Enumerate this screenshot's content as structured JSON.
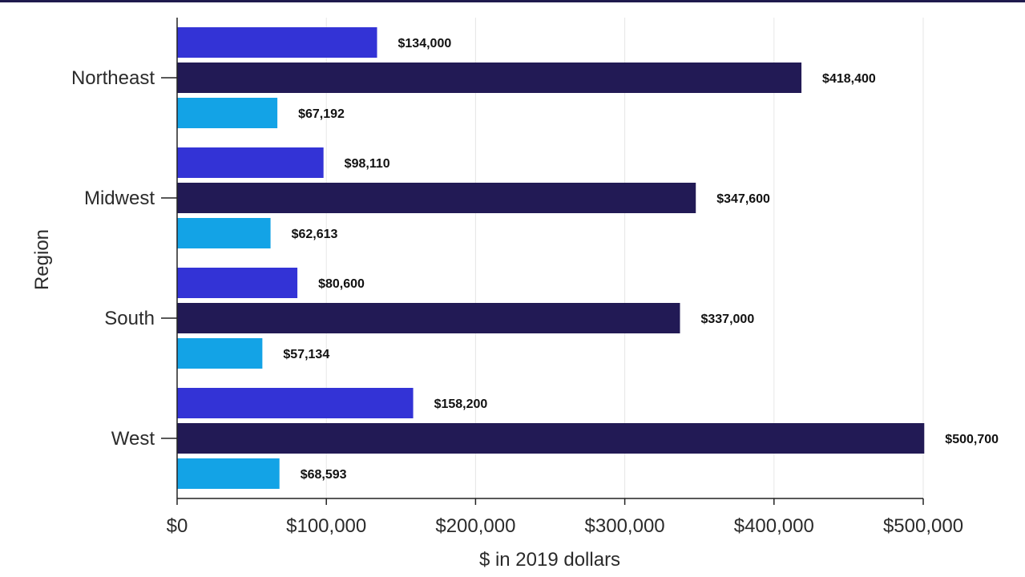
{
  "colors": {
    "top_rule": "#1f1a4d",
    "grid": "#e6e6e6",
    "axis": "#222222"
  },
  "chart_data": {
    "type": "bar",
    "orientation": "horizontal",
    "title": "",
    "xlabel": "$ in 2019 dollars",
    "ylabel": "Region",
    "categories": [
      "Northeast",
      "Midwest",
      "South",
      "West"
    ],
    "series": [
      {
        "color": "#3333d6",
        "values": [
          134000,
          98110,
          80600,
          158200
        ],
        "labels": [
          "$134,000",
          "$98,110",
          "$80,600",
          "$158,200"
        ]
      },
      {
        "color": "#221a55",
        "values": [
          418400,
          347600,
          337000,
          500700
        ],
        "labels": [
          "$418,400",
          "$347,600",
          "$337,000",
          "$500,700"
        ]
      },
      {
        "color": "#13a3e6",
        "values": [
          67192,
          62613,
          57134,
          68593
        ],
        "labels": [
          "$67,192",
          "$62,613",
          "$57,134",
          "$68,593"
        ]
      }
    ],
    "xlim": [
      0,
      500000
    ],
    "xticks": [
      0,
      100000,
      200000,
      300000,
      400000,
      500000
    ],
    "xtick_labels": [
      "$0",
      "$100,000",
      "$200,000",
      "$300,000",
      "$400,000",
      "$500,000"
    ],
    "grid": true,
    "legend": "none"
  }
}
